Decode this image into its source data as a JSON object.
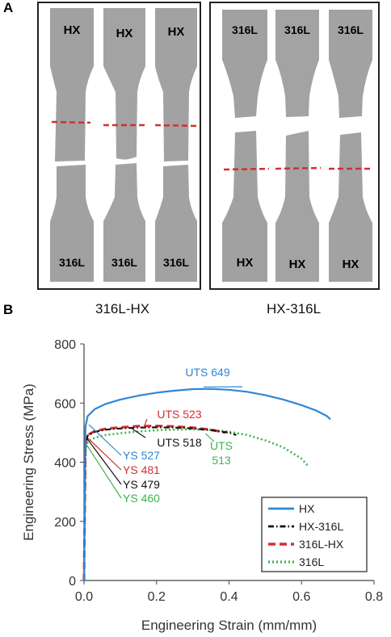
{
  "panels": {
    "a_letter": "A",
    "b_letter": "B",
    "left_group_caption": "316L-HX",
    "right_group_caption": "HX-316L",
    "left_specimens": {
      "top_labels": [
        "HX",
        "HX",
        "HX"
      ],
      "bottom_labels": [
        "316L",
        "316L",
        "316L"
      ]
    },
    "right_specimens": {
      "top_labels": [
        "316L",
        "316L",
        "316L"
      ],
      "bottom_labels": [
        "HX",
        "HX",
        "HX"
      ]
    },
    "colors": {
      "specimen_fill": "#9e9e9e",
      "interface_line": "#d32f2f"
    }
  },
  "chart_data": {
    "type": "line",
    "xlabel": "Engineering Strain (mm/mm)",
    "ylabel": "Engineering Stress (MPa)",
    "xlim": [
      0.0,
      0.8
    ],
    "ylim": [
      0,
      800
    ],
    "xticks": [
      "0.0",
      "0.2",
      "0.4",
      "0.6",
      "0.8"
    ],
    "yticks": [
      "0",
      "200",
      "400",
      "600",
      "800"
    ],
    "legend_position": "bottom-right",
    "series": [
      {
        "name": "HX",
        "color": "#2e86d6",
        "style": "solid",
        "points": [
          [
            0,
            0
          ],
          [
            0.004,
            520
          ],
          [
            0.01,
            556
          ],
          [
            0.03,
            580
          ],
          [
            0.06,
            597
          ],
          [
            0.1,
            612
          ],
          [
            0.15,
            625
          ],
          [
            0.2,
            635
          ],
          [
            0.25,
            642
          ],
          [
            0.3,
            647
          ],
          [
            0.35,
            648
          ],
          [
            0.4,
            645
          ],
          [
            0.45,
            638
          ],
          [
            0.5,
            627
          ],
          [
            0.55,
            612
          ],
          [
            0.6,
            593
          ],
          [
            0.64,
            575
          ],
          [
            0.67,
            556
          ],
          [
            0.68,
            545
          ]
        ]
      },
      {
        "name": "HX-316L",
        "color": "#111111",
        "style": "dashdot",
        "points": [
          [
            0,
            0
          ],
          [
            0.004,
            460
          ],
          [
            0.01,
            490
          ],
          [
            0.03,
            503
          ],
          [
            0.06,
            510
          ],
          [
            0.1,
            514
          ],
          [
            0.15,
            517
          ],
          [
            0.2,
            518
          ],
          [
            0.25,
            517
          ],
          [
            0.3,
            514
          ],
          [
            0.35,
            508
          ],
          [
            0.4,
            500
          ],
          [
            0.42,
            492
          ]
        ]
      },
      {
        "name": "316L-HX",
        "color": "#d32f2f",
        "style": "dashed",
        "points": [
          [
            0,
            0
          ],
          [
            0.004,
            462
          ],
          [
            0.01,
            492
          ],
          [
            0.03,
            505
          ],
          [
            0.06,
            513
          ],
          [
            0.1,
            518
          ],
          [
            0.15,
            522
          ],
          [
            0.2,
            523
          ],
          [
            0.25,
            521
          ],
          [
            0.3,
            517
          ],
          [
            0.35,
            510
          ],
          [
            0.39,
            500
          ]
        ]
      },
      {
        "name": "316L",
        "color": "#3cb54a",
        "style": "dotted",
        "points": [
          [
            0,
            0
          ],
          [
            0.004,
            440
          ],
          [
            0.01,
            470
          ],
          [
            0.03,
            483
          ],
          [
            0.06,
            492
          ],
          [
            0.1,
            498
          ],
          [
            0.15,
            504
          ],
          [
            0.2,
            508
          ],
          [
            0.25,
            510
          ],
          [
            0.3,
            511
          ],
          [
            0.35,
            510
          ],
          [
            0.4,
            503
          ],
          [
            0.45,
            492
          ],
          [
            0.5,
            474
          ],
          [
            0.55,
            450
          ],
          [
            0.6,
            412
          ],
          [
            0.62,
            385
          ]
        ]
      }
    ],
    "annotations": [
      {
        "label": "UTS 649",
        "color": "#2e86d6",
        "x": 0.33,
        "y": 649
      },
      {
        "label": "UTS 523",
        "color": "#d32f2f",
        "x": 0.165,
        "y": 523
      },
      {
        "label": "UTS 518",
        "color": "#111111",
        "x": 0.2,
        "y": 518
      },
      {
        "label": "UTS\n513",
        "color": "#3cb54a",
        "x": 0.34,
        "y": 513
      },
      {
        "label": "YS 527",
        "color": "#2e86d6",
        "x": 0.004,
        "y": 527
      },
      {
        "label": "YS 481",
        "color": "#d32f2f",
        "x": 0.004,
        "y": 481
      },
      {
        "label": "YS 479",
        "color": "#111111",
        "x": 0.004,
        "y": 479
      },
      {
        "label": "YS 460",
        "color": "#3cb54a",
        "x": 0.004,
        "y": 460
      }
    ]
  }
}
